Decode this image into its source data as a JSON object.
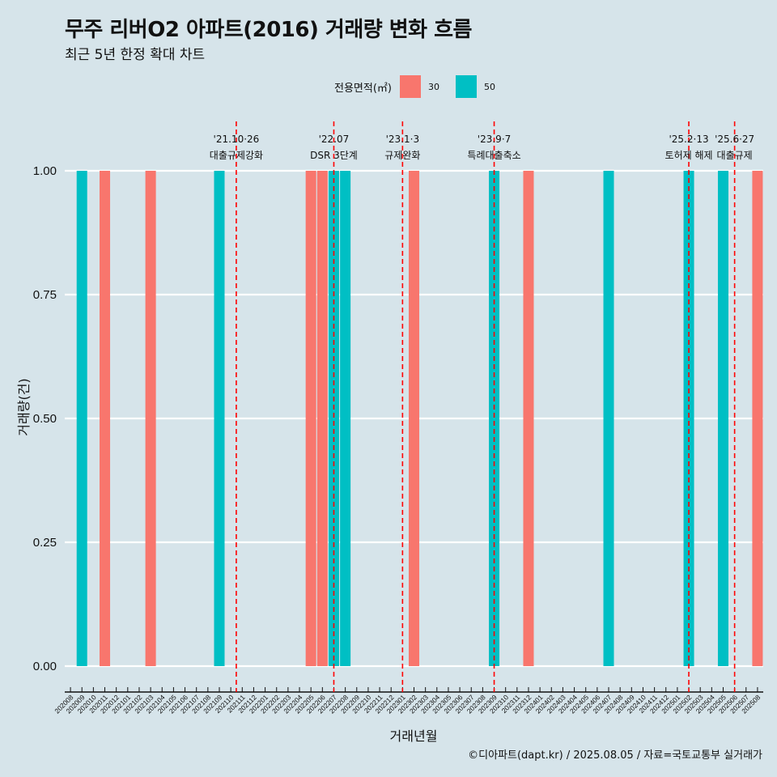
{
  "chart_data": {
    "type": "bar",
    "title": "무주 리버O2 아파트(2016) 거래량 변화 흐름",
    "subtitle": "최근 5년 한정 확대 차트",
    "xlabel": "거래년월",
    "ylabel": "거래량(건)",
    "ylim": [
      0,
      1
    ],
    "yticks": [
      "0.00",
      "0.25",
      "0.50",
      "0.75",
      "1.00"
    ],
    "legend": {
      "title": "전용면적(㎡)",
      "placement": "top"
    },
    "categories": [
      "202008",
      "202009",
      "202010",
      "202011",
      "202012",
      "202101",
      "202102",
      "202103",
      "202104",
      "202105",
      "202106",
      "202107",
      "202108",
      "202109",
      "202110",
      "202111",
      "202112",
      "202201",
      "202202",
      "202203",
      "202204",
      "202205",
      "202206",
      "202207",
      "202208",
      "202209",
      "202210",
      "202211",
      "202212",
      "202301",
      "202302",
      "202303",
      "202304",
      "202305",
      "202306",
      "202307",
      "202308",
      "202309",
      "202310",
      "202311",
      "202312",
      "202401",
      "202402",
      "202403",
      "202404",
      "202405",
      "202406",
      "202407",
      "202408",
      "202409",
      "202410",
      "202411",
      "202412",
      "202501",
      "202502",
      "202503",
      "202504",
      "202505",
      "202506",
      "202507",
      "202508"
    ],
    "series": [
      {
        "name": "30",
        "color": "#f8766d",
        "points": [
          {
            "x": "202011",
            "y": 1
          },
          {
            "x": "202103",
            "y": 1
          },
          {
            "x": "202205",
            "y": 1
          },
          {
            "x": "202206",
            "y": 1
          },
          {
            "x": "202302",
            "y": 1
          },
          {
            "x": "202312",
            "y": 1
          },
          {
            "x": "202508",
            "y": 1
          }
        ]
      },
      {
        "name": "50",
        "color": "#00bfc4",
        "points": [
          {
            "x": "202009",
            "y": 1
          },
          {
            "x": "202109",
            "y": 1
          },
          {
            "x": "202207",
            "y": 1
          },
          {
            "x": "202208",
            "y": 1
          },
          {
            "x": "202309",
            "y": 1
          },
          {
            "x": "202407",
            "y": 1
          },
          {
            "x": "202502",
            "y": 1
          },
          {
            "x": "202505",
            "y": 1
          }
        ]
      }
    ],
    "annotations": [
      {
        "date": "'21.10·26",
        "label": "대출규제강화",
        "x": "202110",
        "offset": 0.12
      },
      {
        "date": "'22.07",
        "label": "DSR 3단계",
        "x": "202207",
        "offset": 0.0
      },
      {
        "date": "'23.1·3",
        "label": "규제완화",
        "x": "202301",
        "offset": 0.0
      },
      {
        "date": "'23.9·7",
        "label": "특례대출축소",
        "x": "202309",
        "offset": 0.0
      },
      {
        "date": "'25.2·13",
        "label": "토허제 해제",
        "x": "202502",
        "offset": 0.0
      },
      {
        "date": "'25.6·27",
        "label": "대출규제",
        "x": "202506",
        "offset": 0.0
      }
    ],
    "annotation_color": "#ff0000",
    "grid": true
  },
  "caption": "©디아파트(dapt.kr) / 2025.08.05 / 자료=국토교통부 실거래가"
}
